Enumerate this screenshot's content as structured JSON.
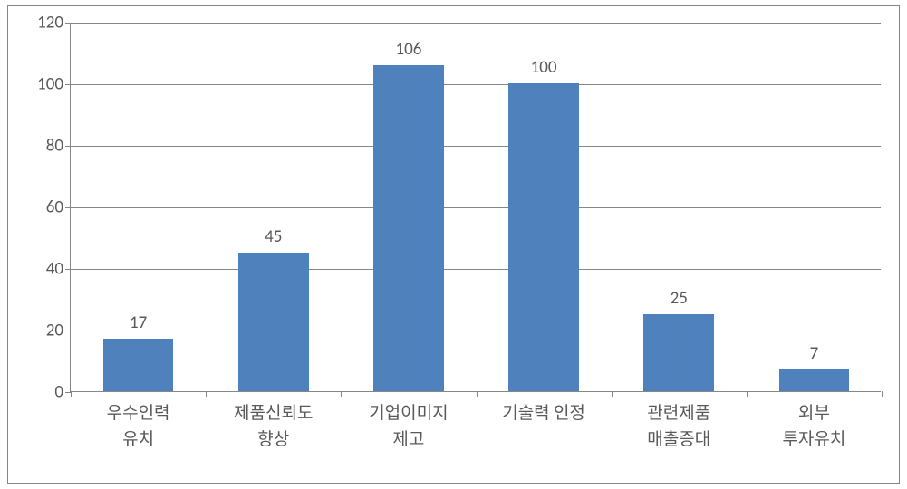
{
  "chart": {
    "type": "bar",
    "background_color": "#ffffff",
    "border_color": "#868686",
    "grid_color": "#868686",
    "text_color": "#595959",
    "bar_color": "#4f81bd",
    "ylim": [
      0,
      120
    ],
    "ytick_step": 20,
    "yticks": [
      0,
      20,
      40,
      60,
      80,
      100,
      120
    ],
    "label_fontsize": 19,
    "value_fontsize": 19,
    "bar_width_ratio": 0.52,
    "categories": [
      "우수인력\n유치",
      "제품신뢰도\n향상",
      "기업이미지\n제고",
      "기술력 인정",
      "관련제품\n매출증대",
      "외부\n투자유치"
    ],
    "values": [
      17,
      45,
      106,
      100,
      25,
      7
    ]
  }
}
